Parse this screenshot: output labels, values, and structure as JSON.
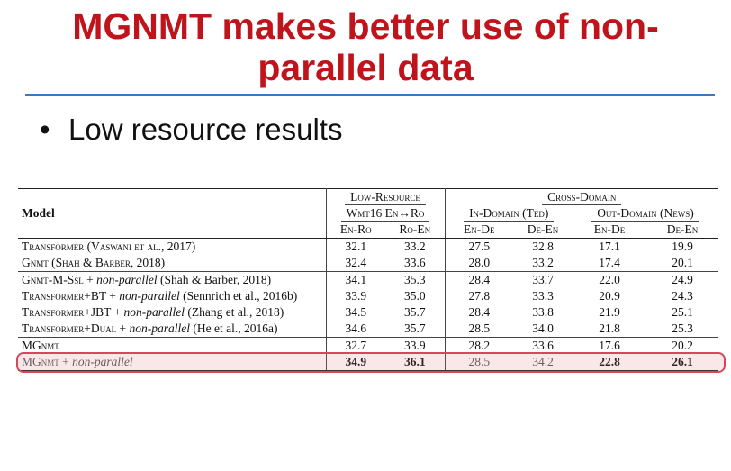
{
  "slide": {
    "title_line1": "MGNMT makes better use of non-",
    "title_line2": "parallel data",
    "bullet": "Low resource results",
    "bullet_mark": "•"
  },
  "table": {
    "header": {
      "model": "Model",
      "low_resource": "Low-Resource",
      "cross_domain": "Cross-Domain",
      "wmt16": "Wmt16 En↔Ro",
      "in_domain": "In-Domain (Ted)",
      "out_domain": "Out-Domain (News)",
      "cols": [
        "En-Ro",
        "Ro-En",
        "En-De",
        "De-En",
        "En-De",
        "De-En"
      ]
    },
    "rows": [
      {
        "model_main": "Transformer (Vaswani et al., 2017)",
        "model_it": "",
        "model_tail": "",
        "values": [
          "32.1",
          "33.2",
          "27.5",
          "32.8",
          "17.1",
          "19.9"
        ]
      },
      {
        "model_main": "Gnmt (Shah & Barber, 2018)",
        "model_it": "",
        "model_tail": "",
        "values": [
          "32.4",
          "33.6",
          "28.0",
          "33.2",
          "17.4",
          "20.1"
        ]
      },
      {
        "model_main": "Gnmt-M-Ssl + ",
        "model_it": "non-parallel",
        "model_tail": " (Shah & Barber, 2018)",
        "values": [
          "34.1",
          "35.3",
          "28.4",
          "33.7",
          "22.0",
          "24.9"
        ]
      },
      {
        "model_main": "Transformer+BT + ",
        "model_it": "non-parallel",
        "model_tail": " (Sennrich et al., 2016b)",
        "values": [
          "33.9",
          "35.0",
          "27.8",
          "33.3",
          "20.9",
          "24.3"
        ]
      },
      {
        "model_main": "Transformer+JBT + ",
        "model_it": "non-parallel",
        "model_tail": " (Zhang et al., 2018)",
        "values": [
          "34.5",
          "35.7",
          "28.4",
          "33.8",
          "21.9",
          "25.1"
        ]
      },
      {
        "model_main": "Transformer+Dual + ",
        "model_it": "non-parallel",
        "model_tail": " (He et al., 2016a)",
        "values": [
          "34.6",
          "35.7",
          "28.5",
          "34.0",
          "21.8",
          "25.3"
        ]
      },
      {
        "model_main": "MGnmt",
        "model_it": "",
        "model_tail": "",
        "values": [
          "32.7",
          "33.9",
          "28.2",
          "33.6",
          "17.6",
          "20.2"
        ]
      },
      {
        "model_main": "MGnmt + ",
        "model_it": "non-parallel",
        "model_tail": "",
        "values": [
          "34.9",
          "36.1",
          "28.5",
          "34.2",
          "22.8",
          "26.1"
        ]
      }
    ],
    "highlight_color": "#d9485a"
  }
}
